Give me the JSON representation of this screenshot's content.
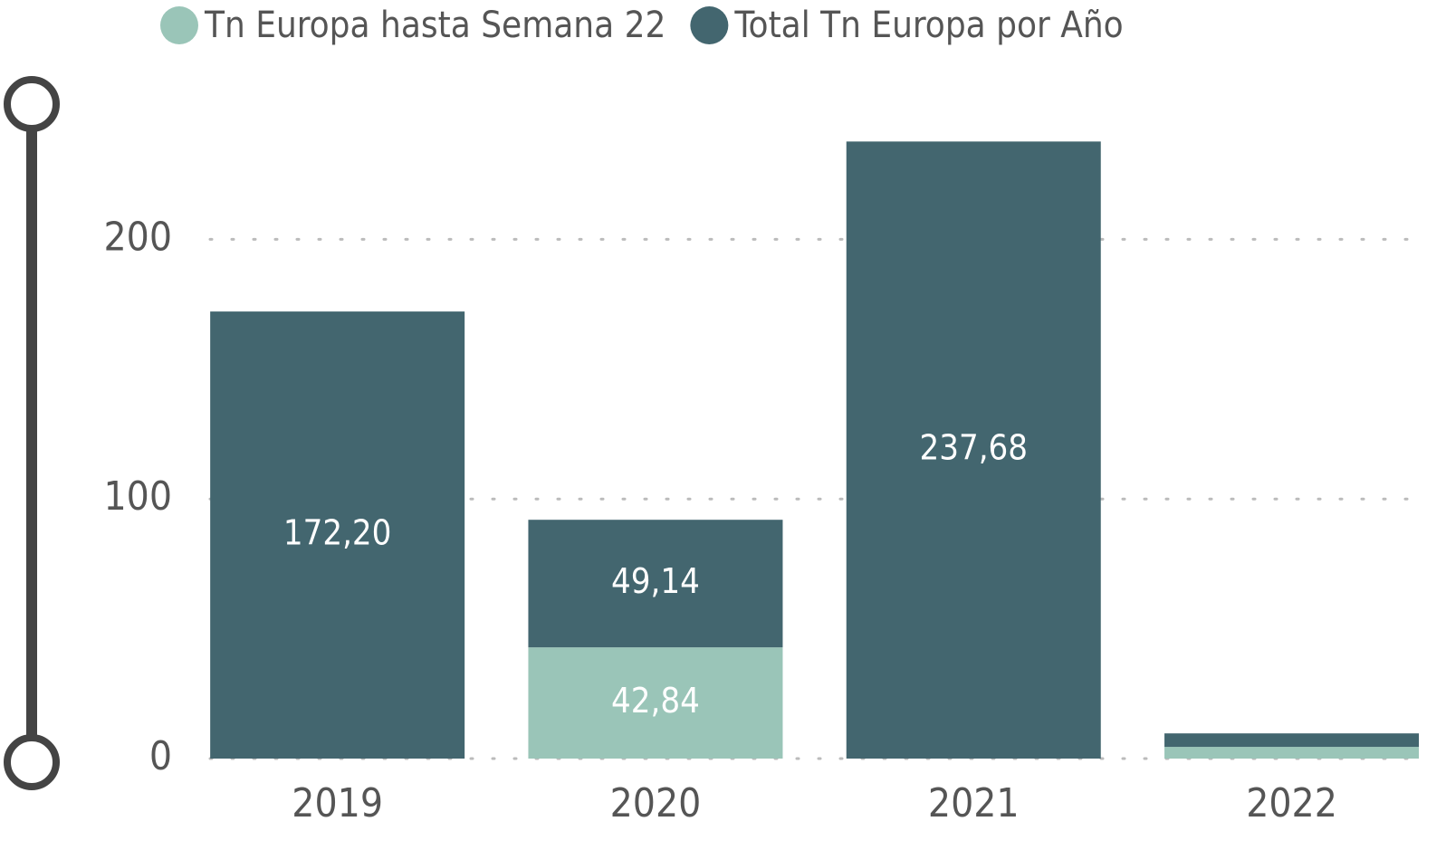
{
  "chart_data": {
    "type": "stacked_bar",
    "categories": [
      "2019",
      "2020",
      "2021",
      "2022"
    ],
    "series": [
      {
        "name": "Tn Europa hasta Semana 22",
        "color": "#9ac5b8",
        "values": [
          null,
          42.84,
          null,
          4.5
        ],
        "value_labels": [
          null,
          "42,84",
          null,
          null
        ]
      },
      {
        "name": "Total Tn Europa por Año",
        "color": "#43666f",
        "values": [
          172.2,
          49.14,
          237.68,
          5.2
        ],
        "value_labels": [
          "172,20",
          "49,14",
          "237,68",
          null
        ]
      }
    ],
    "ylim": [
      0,
      250
    ],
    "yticks": [
      0,
      100,
      200
    ],
    "grid": true,
    "legend": "top"
  }
}
